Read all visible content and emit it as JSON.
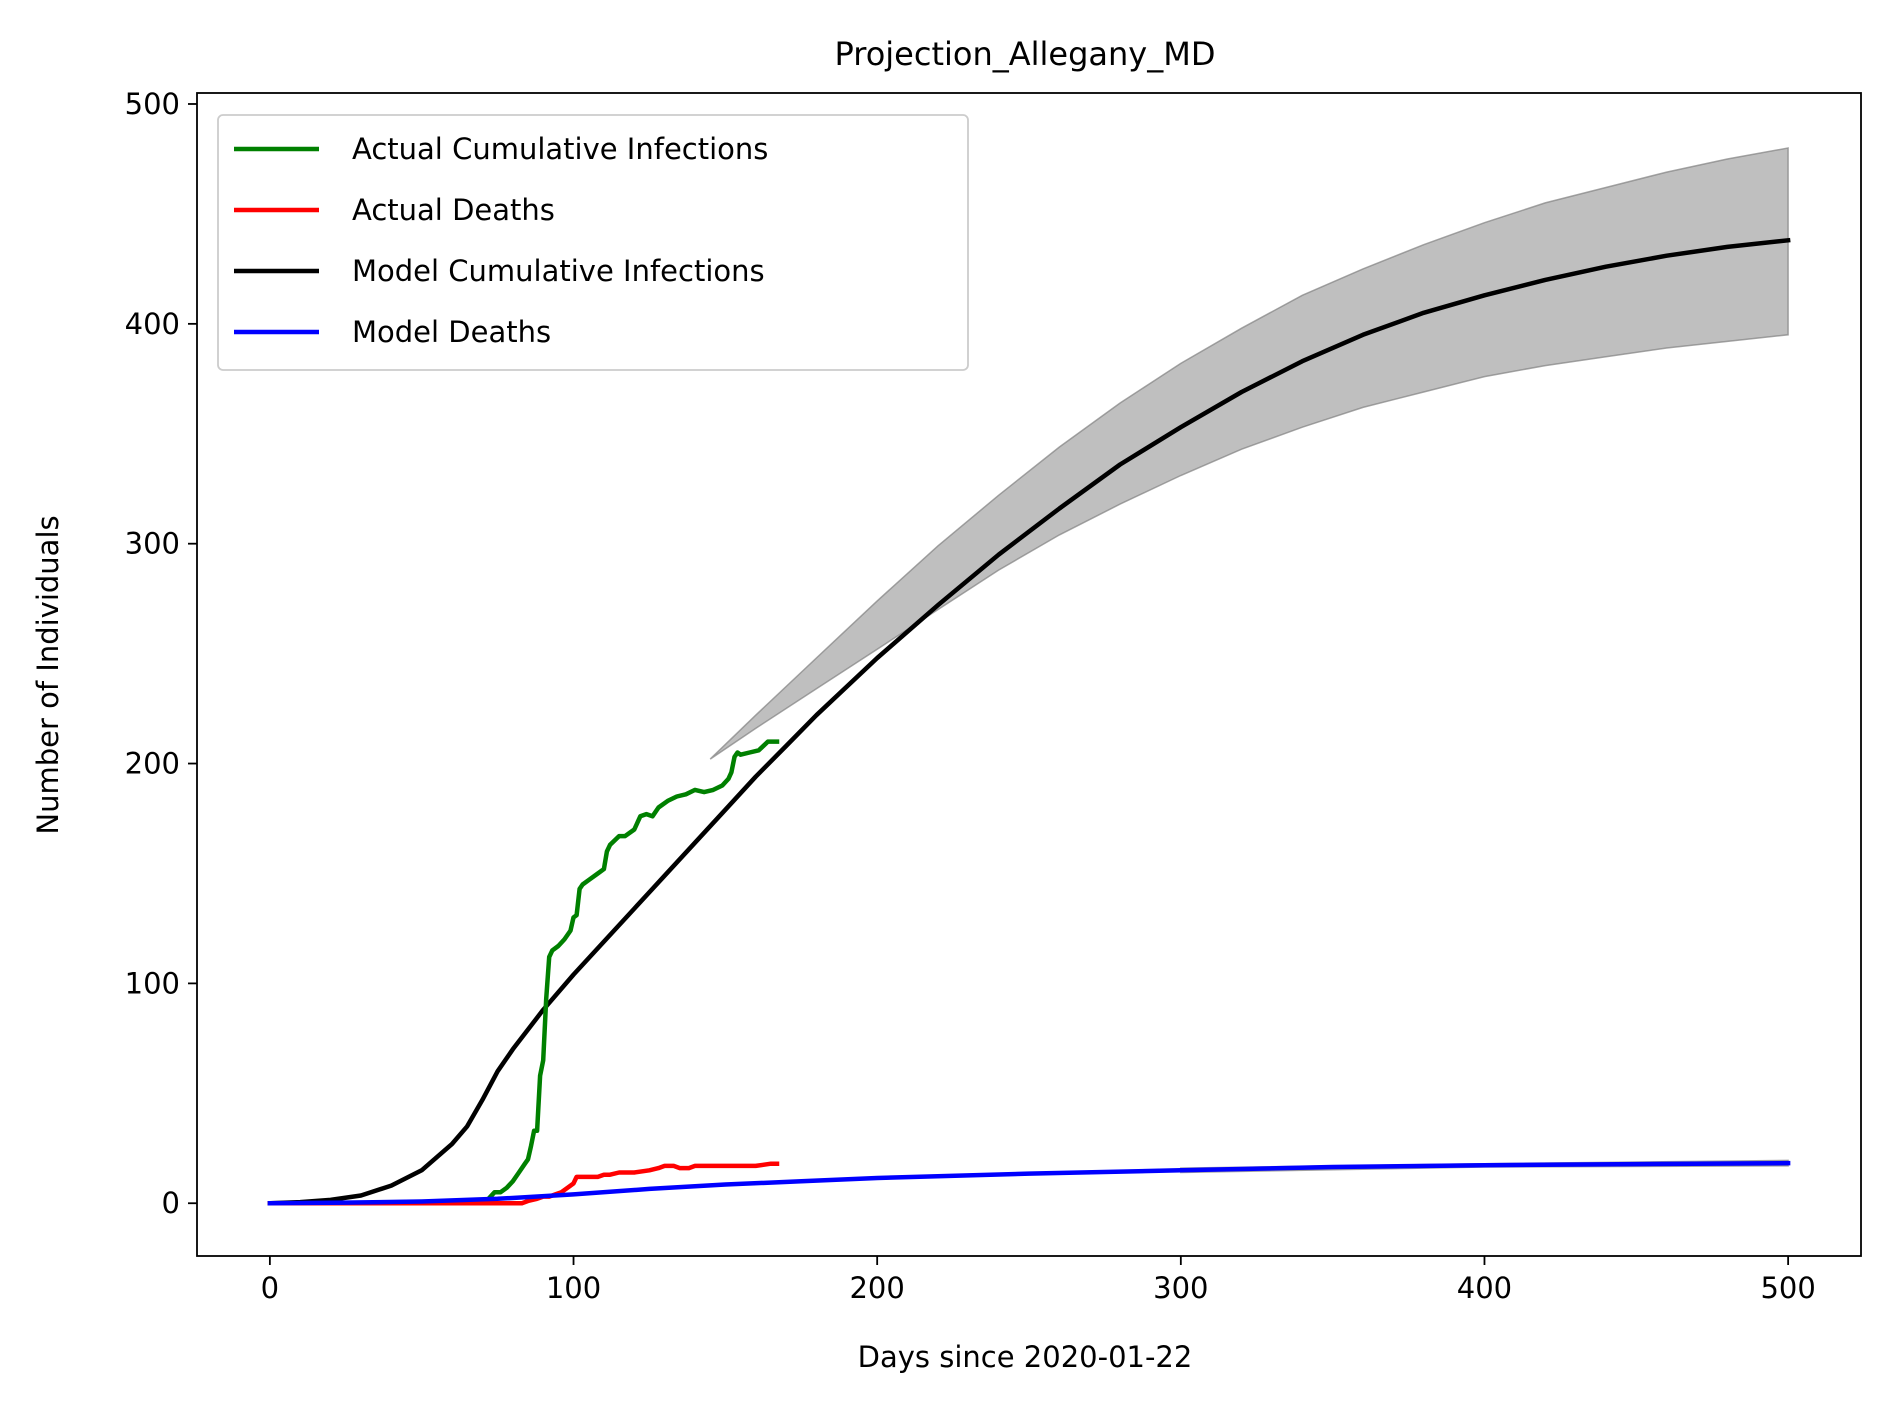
{
  "chart_data": {
    "type": "line",
    "title": "Projection_Allegany_MD",
    "xlabel": "Days since 2020-01-22",
    "ylabel": "Number of Individuals",
    "xlim": [
      -24,
      524
    ],
    "ylim": [
      -24,
      505
    ],
    "xticks": [
      0,
      100,
      200,
      300,
      400,
      500
    ],
    "yticks": [
      0,
      100,
      200,
      300,
      400,
      500
    ],
    "grid": false,
    "legend_position": "top-left",
    "series": [
      {
        "name": "Actual Cumulative Infections",
        "color": "#008000",
        "x": [
          0,
          70,
          72,
          74,
          76,
          78,
          80,
          82,
          84,
          85,
          86,
          87,
          88,
          89,
          90,
          91,
          92,
          93,
          95,
          97,
          99,
          100,
          101,
          102,
          103,
          105,
          108,
          110,
          111,
          112,
          115,
          117,
          120,
          122,
          124,
          126,
          128,
          131,
          134,
          137,
          140,
          143,
          146,
          149,
          151,
          152,
          153,
          154,
          155,
          158,
          161,
          164,
          167
        ],
        "values": [
          0,
          0,
          2,
          5,
          5,
          7,
          10,
          14,
          18,
          20,
          26,
          33,
          33,
          58,
          65,
          93,
          112,
          115,
          117,
          120,
          124,
          130,
          131,
          143,
          145,
          147,
          150,
          152,
          160,
          163,
          167,
          167,
          170,
          176,
          177,
          176,
          180,
          183,
          185,
          186,
          188,
          187,
          188,
          190,
          193,
          196,
          203,
          205,
          204,
          205,
          206,
          210,
          210
        ]
      },
      {
        "name": "Actual Deaths",
        "color": "#ff0000",
        "x": [
          0,
          80,
          83,
          85,
          88,
          90,
          92,
          94,
          96,
          98,
          100,
          101,
          105,
          108,
          110,
          112,
          115,
          120,
          125,
          128,
          130,
          133,
          135,
          138,
          140,
          145,
          150,
          155,
          160,
          165,
          167
        ],
        "values": [
          0,
          0,
          0,
          1,
          2,
          3,
          3,
          4,
          5,
          7,
          9,
          12,
          12,
          12,
          13,
          13,
          14,
          14,
          15,
          16,
          17,
          17,
          16,
          16,
          17,
          17,
          17,
          17,
          17,
          18,
          18
        ]
      },
      {
        "name": "Model Cumulative Infections",
        "color": "#000000",
        "x": [
          0,
          10,
          20,
          30,
          40,
          50,
          60,
          65,
          70,
          75,
          80,
          90,
          100,
          110,
          120,
          130,
          140,
          150,
          160,
          170,
          180,
          200,
          220,
          240,
          260,
          280,
          300,
          320,
          340,
          360,
          380,
          400,
          420,
          440,
          460,
          480,
          500
        ],
        "values": [
          0,
          0.5,
          1.5,
          3.5,
          8,
          15,
          27,
          35,
          47,
          60,
          70,
          88,
          104,
          119,
          134,
          149,
          164,
          179,
          194,
          208,
          222,
          248,
          272,
          295,
          316,
          336,
          353,
          369,
          383,
          395,
          405,
          413,
          420,
          426,
          431,
          435,
          438
        ]
      },
      {
        "name": "Model Deaths",
        "color": "#0000ff",
        "x": [
          0,
          25,
          50,
          75,
          100,
          125,
          150,
          175,
          200,
          250,
          300,
          350,
          400,
          450,
          500
        ],
        "values": [
          0,
          0.3,
          0.8,
          2,
          4,
          6.5,
          8.5,
          10,
          11.5,
          13.5,
          15,
          16.5,
          17.3,
          17.8,
          18.2
        ]
      }
    ],
    "bands": [
      {
        "color": "#bfbfbf",
        "edge_color": "#808080",
        "x": [
          145,
          160,
          180,
          200,
          220,
          240,
          260,
          280,
          300,
          320,
          340,
          360,
          380,
          400,
          420,
          440,
          460,
          480,
          500
        ],
        "upper": [
          202,
          222,
          248,
          274,
          299,
          322,
          344,
          364,
          382,
          398,
          413,
          425,
          436,
          446,
          455,
          462,
          469,
          475,
          480
        ],
        "lower": [
          202,
          216,
          234,
          252,
          270,
          288,
          304,
          318,
          331,
          343,
          353,
          362,
          369,
          376,
          381,
          385,
          389,
          392,
          395
        ]
      },
      {
        "color": "#bfbfbf",
        "edge_color": "#808080",
        "x": [
          300,
          400,
          500
        ],
        "upper": [
          16,
          18,
          19.5
        ],
        "lower": [
          14,
          16.5,
          17
        ]
      }
    ]
  }
}
